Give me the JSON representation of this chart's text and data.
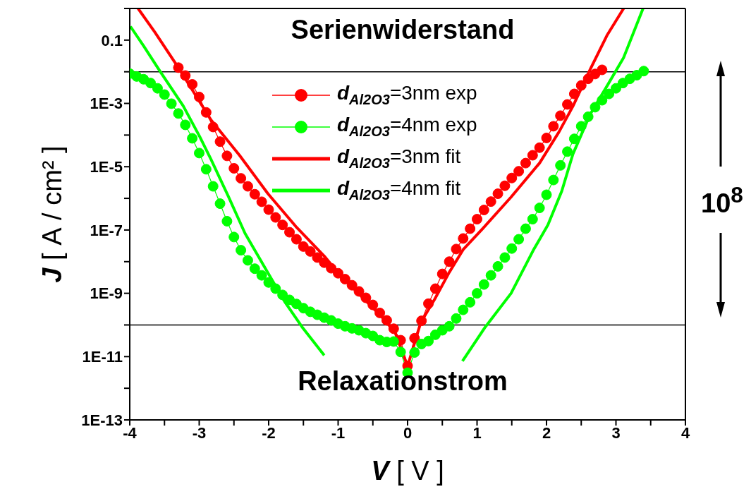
{
  "chart_data": {
    "type": "line",
    "xlabel": "V [ V ]",
    "ylabel": "J [ A / cm² ]",
    "log": "y",
    "xlim": [
      -4,
      4
    ],
    "ylim": [
      1e-13,
      1
    ],
    "xticks": [
      -4,
      {
        "value": -3.5,
        "label": null
      },
      -3,
      {
        "value": -2.5,
        "label": null
      },
      -2,
      {
        "value": -1.5,
        "label": null
      },
      -1,
      {
        "value": -0.5,
        "label": null
      },
      0,
      {
        "value": 0.5,
        "label": null
      },
      1,
      {
        "value": 1.5,
        "label": null
      },
      2,
      {
        "value": 2.5,
        "label": null
      },
      3,
      {
        "value": 3.5,
        "label": null
      },
      4
    ],
    "yticks": [
      {
        "value": 1e-13,
        "label": "1E-13"
      },
      {
        "value": 1e-12,
        "label": null
      },
      {
        "value": 1e-11,
        "label": "1E-11"
      },
      {
        "value": 1e-10,
        "label": null
      },
      {
        "value": 1e-09,
        "label": "1E-9"
      },
      {
        "value": 1e-08,
        "label": null
      },
      {
        "value": 1e-07,
        "label": "1E-7"
      },
      {
        "value": 1e-06,
        "label": null
      },
      {
        "value": 1e-05,
        "label": "1E-5"
      },
      {
        "value": 0.0001,
        "label": null
      },
      {
        "value": 0.001,
        "label": "1E-3"
      },
      {
        "value": 0.01,
        "label": null
      },
      0.1,
      {
        "value": 1,
        "label": null
      }
    ],
    "legend": "top",
    "ref_lines": [
      {
        "axis": "y",
        "value": 0.01,
        "color": "#000000"
      },
      {
        "axis": "y",
        "value": 1e-10,
        "color": "#000000"
      }
    ],
    "annotations": [
      "Serienwiderstand",
      "Relaxationstrom",
      "10$^{8}$"
    ],
    "series": [
      {
        "name": "d$_{Al2O3}$=3nm exp",
        "color": "#ff0000",
        "marker": "circle",
        "x": [
          -3.3,
          -3.2,
          -3.1,
          -3.0,
          -2.9,
          -2.8,
          -2.7,
          -2.6,
          -2.5,
          -2.4,
          -2.3,
          -2.2,
          -2.1,
          -2.0,
          -1.9,
          -1.8,
          -1.7,
          -1.6,
          -1.5,
          -1.4,
          -1.3,
          -1.2,
          -1.1,
          -1.0,
          -0.9,
          -0.8,
          -0.7,
          -0.6,
          -0.5,
          -0.4,
          -0.3,
          -0.2,
          -0.1,
          0,
          0.1,
          0.2,
          0.3,
          0.4,
          0.5,
          0.6,
          0.7,
          0.8,
          0.9,
          1.0,
          1.1,
          1.2,
          1.3,
          1.4,
          1.5,
          1.6,
          1.7,
          1.8,
          1.9,
          2.0,
          2.1,
          2.2,
          2.3,
          2.4,
          2.5,
          2.6,
          2.7,
          2.8
        ],
        "values": [
          0.0135,
          0.0076,
          0.004,
          0.0016,
          0.00052,
          0.00018,
          6.2e-05,
          2.2e-05,
          8.9e-06,
          4.3e-06,
          2.4e-06,
          1.35e-06,
          7.8e-07,
          4.4e-07,
          2.5e-07,
          1.45e-07,
          8.5e-08,
          5.1e-08,
          3e-08,
          2.1e-08,
          1.35e-08,
          9.3e-09,
          6.2e-09,
          4.3e-09,
          2.8e-09,
          1.8e-09,
          1.15e-09,
          7.2e-10,
          4.3e-10,
          2.4e-10,
          1.4e-10,
          7.6e-11,
          3.3e-11,
          5.1e-12,
          3.8e-11,
          1.35e-10,
          4.7e-10,
          1.4e-09,
          4.1e-09,
          1e-08,
          2.5e-08,
          5.4e-08,
          1.1e-07,
          2.2e-07,
          4.3e-07,
          7.9e-07,
          1.4e-06,
          2.5e-06,
          4.4e-06,
          7.2e-06,
          1.3e-05,
          2.3e-05,
          4e-05,
          8.1e-05,
          0.00019,
          0.00041,
          0.00093,
          0.002,
          0.0037,
          0.006,
          0.0085,
          0.0115
        ]
      },
      {
        "name": "d$_{Al2O3}$=4nm exp",
        "color": "#00ff00",
        "marker": "circle",
        "x": [
          -4.0,
          -3.9,
          -3.8,
          -3.7,
          -3.6,
          -3.5,
          -3.4,
          -3.3,
          -3.2,
          -3.1,
          -3.0,
          -2.9,
          -2.8,
          -2.7,
          -2.6,
          -2.5,
          -2.4,
          -2.3,
          -2.2,
          -2.1,
          -2.0,
          -1.9,
          -1.8,
          -1.7,
          -1.6,
          -1.5,
          -1.4,
          -1.3,
          -1.2,
          -1.1,
          -1.0,
          -0.9,
          -0.8,
          -0.7,
          -0.6,
          -0.5,
          -0.4,
          -0.3,
          -0.2,
          -0.1,
          0,
          0.1,
          0.2,
          0.3,
          0.4,
          0.5,
          0.6,
          0.7,
          0.8,
          0.9,
          1.0,
          1.1,
          1.2,
          1.3,
          1.4,
          1.5,
          1.6,
          1.7,
          1.8,
          1.9,
          2.0,
          2.1,
          2.2,
          2.3,
          2.4,
          2.5,
          2.6,
          2.7,
          2.8,
          2.9,
          3.0,
          3.1,
          3.2,
          3.3,
          3.4
        ],
        "values": [
          0.0087,
          0.0071,
          0.0058,
          0.0044,
          0.003,
          0.0019,
          0.00098,
          0.00048,
          0.00021,
          7.9e-05,
          2.7e-05,
          8.3e-06,
          2.4e-06,
          6.8e-07,
          1.9e-07,
          6e-08,
          2.3e-08,
          1.1e-08,
          6e-09,
          3.7e-09,
          2.2e-09,
          1.4e-09,
          8.9e-10,
          6.2e-10,
          4.6e-10,
          3.4e-10,
          2.6e-10,
          2.1e-10,
          1.7e-10,
          1.4e-10,
          1.1e-10,
          9.1e-11,
          7.8e-11,
          6.8e-11,
          5.5e-11,
          4.5e-11,
          3.3e-11,
          2.9e-11,
          3e-11,
          1.4e-11,
          3.1e-12,
          1.35e-11,
          2.5e-11,
          3.1e-11,
          4.9e-11,
          6.8e-11,
          9.1e-11,
          1.6e-10,
          3e-10,
          5.2e-10,
          1e-09,
          1.9e-09,
          3.7e-09,
          7.1e-09,
          1.35e-08,
          2.6e-08,
          5.1e-08,
          1.1e-07,
          2.2e-07,
          5e-07,
          1.3e-06,
          3.8e-06,
          1.1e-05,
          3e-05,
          7.6e-05,
          0.00019,
          0.00038,
          0.00076,
          0.00126,
          0.002,
          0.003,
          0.0044,
          0.006,
          0.0078,
          0.0105
        ]
      },
      {
        "name": "d$_{Al2O3}$=3nm fit",
        "color": "#ff0000",
        "marker": "none",
        "x": [
          -3.88,
          -3.64,
          -3.3,
          -2.83,
          -2.42,
          -2.01,
          -1.61,
          -1.2,
          -1.0,
          -0.79,
          -0.39,
          -0.18,
          0,
          0.19,
          0.39,
          0.6,
          0.8,
          1.08,
          1.49,
          1.9,
          2.18,
          2.38,
          2.63,
          2.87,
          3.11
        ],
        "values": [
          1,
          0.18,
          0.0135,
          0.0003,
          2.3e-05,
          1.4e-06,
          1.3e-07,
          1.5e-08,
          4.4e-09,
          1.5e-09,
          2e-10,
          5.8e-11,
          5e-12,
          1.2e-10,
          6.5e-10,
          4.6e-09,
          2.4e-08,
          1.1e-07,
          1.1e-06,
          1.3e-05,
          0.000126,
          0.00081,
          0.012,
          0.14,
          1
        ]
      },
      {
        "name": "d$_{Al2O3}$=4nm fit",
        "color": "#00ff00",
        "marker": "none",
        "x": [
          -3.99,
          -3.8,
          -3.56,
          -3.23,
          -2.99,
          -2.83,
          -2.58,
          -2.34,
          -2.01,
          -1.77,
          -1.52,
          -1.2,
          0,
          0.79,
          1.12,
          1.49,
          1.81,
          2.02,
          2.22,
          2.38,
          2.63,
          2.87,
          3.11,
          3.39
        ],
        "values": [
          0.27,
          0.065,
          0.01,
          0.00083,
          8.7e-05,
          1.7e-05,
          1.15e-06,
          7.8e-08,
          4.4e-09,
          5.5e-10,
          8.7e-11,
          1.1e-11,
          null,
          7.2e-12,
          8.7e-11,
          1e-09,
          2.3e-08,
          1.45e-07,
          1.7e-06,
          2.5e-05,
          0.00046,
          0.0035,
          0.028,
          1
        ]
      }
    ]
  }
}
